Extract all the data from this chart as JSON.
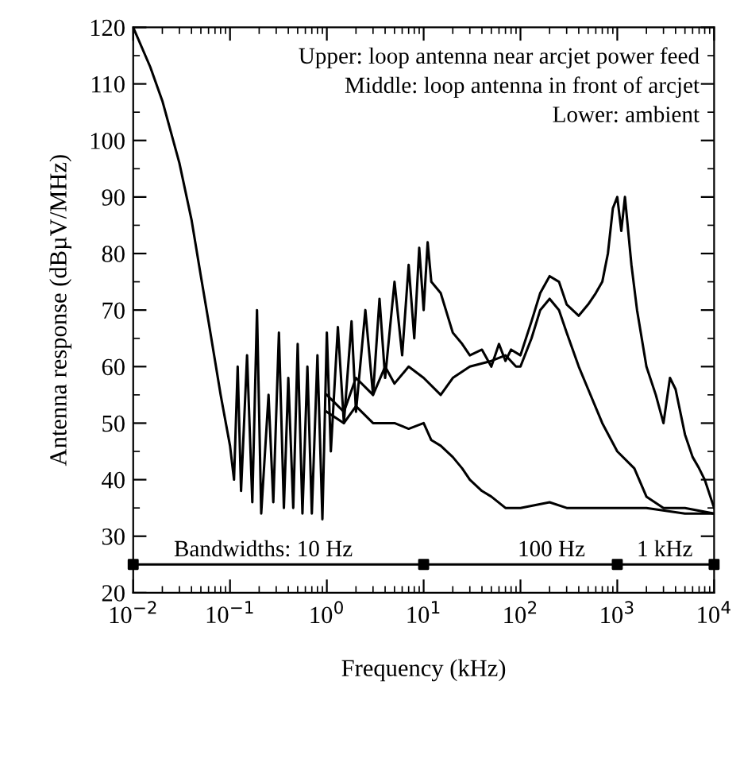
{
  "chart_data": {
    "type": "line",
    "xlabel": "Frequency (kHz)",
    "ylabel": "Antenna response (dBµV/MHz)",
    "log": "x",
    "xlim": [
      0.01,
      10000
    ],
    "ylim": [
      20,
      120
    ],
    "xticks": [
      {
        "value": 0.01,
        "label": "10$^{−2}$"
      },
      {
        "value": 0.1,
        "label": "10$^{−1}$"
      },
      {
        "value": 1,
        "label": "10$^{0}$"
      },
      {
        "value": 10,
        "label": "10$^{1}$"
      },
      {
        "value": 100,
        "label": "10$^{2}$"
      },
      {
        "value": 1000,
        "label": "10$^{3}$"
      },
      {
        "value": 10000,
        "label": "10$^{4}$"
      }
    ],
    "yticks": [
      20,
      30,
      40,
      50,
      60,
      70,
      80,
      90,
      100,
      110,
      120
    ],
    "grid": false,
    "legend": false,
    "series": [
      {
        "color": "#000000",
        "x": [
          0.01,
          0.015,
          0.02,
          0.03,
          0.04,
          0.05,
          0.06,
          0.08,
          0.1,
          0.11,
          0.12,
          0.13,
          0.15,
          0.17,
          0.19,
          0.21,
          0.25,
          0.28,
          0.32,
          0.36,
          0.4,
          0.45,
          0.5,
          0.56,
          0.63,
          0.7,
          0.8,
          0.9,
          1,
          1.1,
          1.3,
          1.5,
          1.8,
          2,
          2.5,
          3,
          3.5,
          4,
          5,
          6,
          7,
          8,
          9,
          10,
          11,
          12,
          15,
          20,
          25,
          30,
          40,
          50,
          60,
          70,
          80,
          100,
          130,
          160,
          200,
          250,
          300,
          400,
          500,
          600,
          700,
          800,
          900,
          1000,
          1100,
          1200,
          1400,
          1600,
          2000,
          2500,
          3000,
          3500,
          4000,
          5000,
          6000,
          7000,
          8000,
          10000
        ],
        "values": [
          120,
          113,
          107,
          96,
          86,
          76,
          68,
          55,
          46,
          40,
          60,
          38,
          62,
          36,
          70,
          34,
          55,
          36,
          66,
          35,
          58,
          35,
          64,
          34,
          60,
          34,
          62,
          33,
          66,
          45,
          67,
          50,
          68,
          52,
          70,
          55,
          72,
          58,
          75,
          62,
          78,
          65,
          81,
          70,
          82,
          75,
          73,
          66,
          64,
          62,
          63,
          60,
          64,
          61,
          63,
          62,
          68,
          73,
          76,
          75,
          71,
          69,
          71,
          73,
          75,
          80,
          88,
          90,
          84,
          90,
          78,
          70,
          60,
          55,
          50,
          58,
          56,
          48,
          44,
          42,
          40,
          35
        ]
      },
      {
        "color": "#000000",
        "x": [
          1,
          1.5,
          2,
          3,
          4,
          5,
          7,
          10,
          15,
          20,
          30,
          50,
          70,
          90,
          100,
          130,
          160,
          200,
          250,
          300,
          400,
          500,
          700,
          1000,
          1500,
          2000,
          3000,
          5000,
          10000
        ],
        "values": [
          55,
          52,
          58,
          55,
          60,
          57,
          60,
          58,
          55,
          58,
          60,
          61,
          62,
          60,
          60,
          65,
          70,
          72,
          70,
          66,
          60,
          56,
          50,
          45,
          42,
          37,
          35,
          35,
          34
        ]
      },
      {
        "color": "#000000",
        "x": [
          1,
          1.5,
          2,
          3,
          5,
          7,
          10,
          12,
          15,
          20,
          25,
          30,
          40,
          50,
          70,
          100,
          200,
          300,
          500,
          1000,
          2000,
          5000,
          10000
        ],
        "values": [
          52,
          50,
          53,
          50,
          50,
          49,
          50,
          47,
          46,
          44,
          42,
          40,
          38,
          37,
          35,
          35,
          36,
          35,
          35,
          35,
          35,
          34,
          34
        ]
      },
      {
        "type": "scatter",
        "color": "#000000",
        "marker": "square",
        "x": [
          0.01,
          10,
          1000,
          10000
        ],
        "values": [
          25,
          25,
          25,
          25
        ]
      }
    ],
    "ref_lines": [
      {
        "axis": "y",
        "value": 25,
        "color": "#000000"
      }
    ],
    "annotations": [
      "Upper: loop antenna near arcjet power feed",
      "Middle: loop antenna in front of arcjet",
      "Lower: ambient",
      "Bandwidths: 10 Hz",
      "100 Hz",
      "1 kHz"
    ]
  }
}
